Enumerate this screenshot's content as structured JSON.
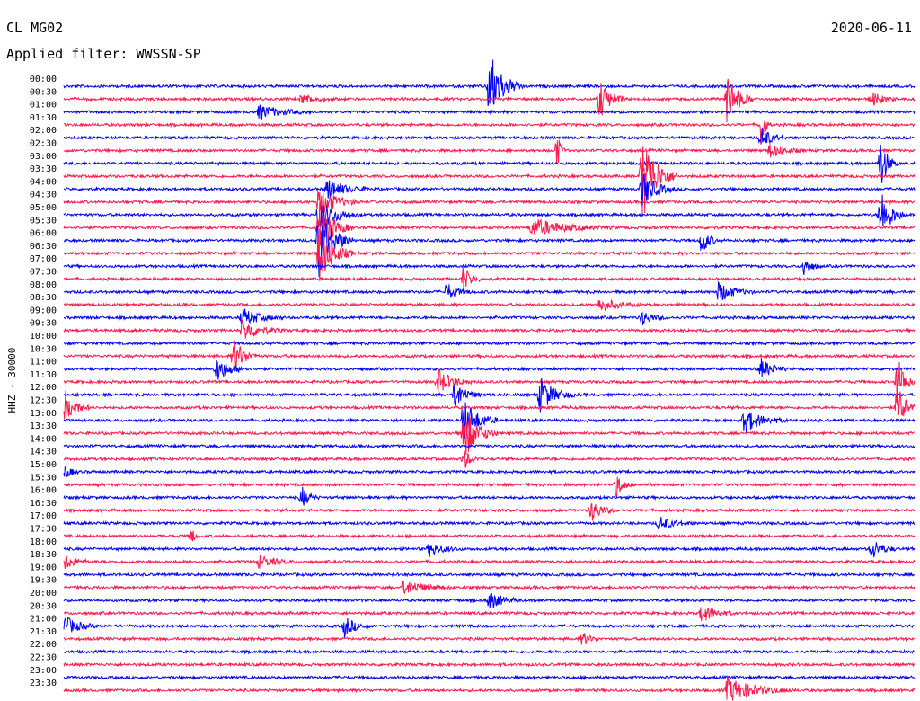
{
  "header": {
    "station": "CL MG02",
    "filter": "Applied filter: WWSSN-SP",
    "date": "2020-06-11"
  },
  "chart_data": {
    "type": "line",
    "ylabel": "HHZ - 30000",
    "row_labels": [
      "00:00",
      "00:30",
      "01:00",
      "01:30",
      "02:00",
      "02:30",
      "03:00",
      "03:30",
      "04:00",
      "04:30",
      "05:00",
      "05:30",
      "06:00",
      "06:30",
      "07:00",
      "07:30",
      "08:00",
      "08:30",
      "09:00",
      "09:30",
      "10:00",
      "10:30",
      "11:00",
      "11:30",
      "12:00",
      "12:30",
      "13:00",
      "13:30",
      "14:00",
      "14:30",
      "15:00",
      "15:30",
      "16:00",
      "16:30",
      "17:00",
      "17:30",
      "18:00",
      "18:30",
      "19:00",
      "19:30",
      "20:00",
      "20:30",
      "21:00",
      "21:30",
      "22:00",
      "22:30",
      "23:00",
      "23:30"
    ],
    "trace_colors": [
      "#0000ff",
      "#ff1a4d"
    ],
    "grid": false,
    "events": [
      {
        "row": 0,
        "at": 0.5,
        "amp": 40,
        "len": 0.04
      },
      {
        "row": 1,
        "at": 0.63,
        "amp": 22,
        "len": 0.03
      },
      {
        "row": 1,
        "at": 0.78,
        "amp": 30,
        "len": 0.03
      },
      {
        "row": 1,
        "at": 0.28,
        "amp": 6,
        "len": 0.04
      },
      {
        "row": 1,
        "at": 0.95,
        "amp": 8,
        "len": 0.03
      },
      {
        "row": 2,
        "at": 0.23,
        "amp": 8,
        "len": 0.06
      },
      {
        "row": 3,
        "at": 0.82,
        "amp": 30,
        "len": 0.01
      },
      {
        "row": 4,
        "at": 0.82,
        "amp": 12,
        "len": 0.03
      },
      {
        "row": 5,
        "at": 0.58,
        "amp": 20,
        "len": 0.01
      },
      {
        "row": 5,
        "at": 0.83,
        "amp": 8,
        "len": 0.04
      },
      {
        "row": 6,
        "at": 0.96,
        "amp": 30,
        "len": 0.02
      },
      {
        "row": 7,
        "at": 0.68,
        "amp": 50,
        "len": 0.04
      },
      {
        "row": 8,
        "at": 0.31,
        "amp": 12,
        "len": 0.05
      },
      {
        "row": 8,
        "at": 0.68,
        "amp": 20,
        "len": 0.04
      },
      {
        "row": 9,
        "at": 0.3,
        "amp": 16,
        "len": 0.05
      },
      {
        "row": 10,
        "at": 0.3,
        "amp": 18,
        "len": 0.05
      },
      {
        "row": 10,
        "at": 0.96,
        "amp": 30,
        "len": 0.03
      },
      {
        "row": 11,
        "at": 0.3,
        "amp": 30,
        "len": 0.04
      },
      {
        "row": 11,
        "at": 0.55,
        "amp": 10,
        "len": 0.1
      },
      {
        "row": 12,
        "at": 0.3,
        "amp": 40,
        "len": 0.04
      },
      {
        "row": 12,
        "at": 0.75,
        "amp": 16,
        "len": 0.02
      },
      {
        "row": 13,
        "at": 0.3,
        "amp": 35,
        "len": 0.04
      },
      {
        "row": 14,
        "at": 0.87,
        "amp": 12,
        "len": 0.02
      },
      {
        "row": 15,
        "at": 0.47,
        "amp": 16,
        "len": 0.02
      },
      {
        "row": 16,
        "at": 0.45,
        "amp": 10,
        "len": 0.03
      },
      {
        "row": 16,
        "at": 0.77,
        "amp": 12,
        "len": 0.04
      },
      {
        "row": 17,
        "at": 0.63,
        "amp": 8,
        "len": 0.05
      },
      {
        "row": 18,
        "at": 0.21,
        "amp": 10,
        "len": 0.05
      },
      {
        "row": 18,
        "at": 0.68,
        "amp": 8,
        "len": 0.03
      },
      {
        "row": 19,
        "at": 0.21,
        "amp": 12,
        "len": 0.05
      },
      {
        "row": 21,
        "at": 0.2,
        "amp": 20,
        "len": 0.03
      },
      {
        "row": 22,
        "at": 0.18,
        "amp": 14,
        "len": 0.04
      },
      {
        "row": 22,
        "at": 0.82,
        "amp": 12,
        "len": 0.03
      },
      {
        "row": 23,
        "at": 0.44,
        "amp": 14,
        "len": 0.04
      },
      {
        "row": 23,
        "at": 0.98,
        "amp": 30,
        "len": 0.02
      },
      {
        "row": 24,
        "at": 0.46,
        "amp": 16,
        "len": 0.03
      },
      {
        "row": 24,
        "at": 0.56,
        "amp": 20,
        "len": 0.04
      },
      {
        "row": 25,
        "at": 0.0,
        "amp": 22,
        "len": 0.03
      },
      {
        "row": 25,
        "at": 0.98,
        "amp": 30,
        "len": 0.02
      },
      {
        "row": 26,
        "at": 0.47,
        "amp": 25,
        "len": 0.04
      },
      {
        "row": 26,
        "at": 0.8,
        "amp": 14,
        "len": 0.05
      },
      {
        "row": 27,
        "at": 0.47,
        "amp": 30,
        "len": 0.04
      },
      {
        "row": 29,
        "at": 0.47,
        "amp": 12,
        "len": 0.02
      },
      {
        "row": 30,
        "at": 0.0,
        "amp": 8,
        "len": 0.02
      },
      {
        "row": 31,
        "at": 0.65,
        "amp": 14,
        "len": 0.02
      },
      {
        "row": 32,
        "at": 0.28,
        "amp": 12,
        "len": 0.02
      },
      {
        "row": 33,
        "at": 0.62,
        "amp": 12,
        "len": 0.03
      },
      {
        "row": 34,
        "at": 0.7,
        "amp": 8,
        "len": 0.04
      },
      {
        "row": 35,
        "at": 0.15,
        "amp": 10,
        "len": 0.01
      },
      {
        "row": 36,
        "at": 0.43,
        "amp": 8,
        "len": 0.04
      },
      {
        "row": 36,
        "at": 0.95,
        "amp": 12,
        "len": 0.03
      },
      {
        "row": 37,
        "at": 0.0,
        "amp": 10,
        "len": 0.03
      },
      {
        "row": 37,
        "at": 0.23,
        "amp": 8,
        "len": 0.04
      },
      {
        "row": 39,
        "at": 0.4,
        "amp": 8,
        "len": 0.06
      },
      {
        "row": 40,
        "at": 0.5,
        "amp": 10,
        "len": 0.04
      },
      {
        "row": 41,
        "at": 0.75,
        "amp": 10,
        "len": 0.04
      },
      {
        "row": 42,
        "at": 0.0,
        "amp": 12,
        "len": 0.04
      },
      {
        "row": 42,
        "at": 0.33,
        "amp": 12,
        "len": 0.03
      },
      {
        "row": 43,
        "at": 0.61,
        "amp": 8,
        "len": 0.02
      },
      {
        "row": 47,
        "at": 0.78,
        "amp": 14,
        "len": 0.08
      }
    ]
  }
}
